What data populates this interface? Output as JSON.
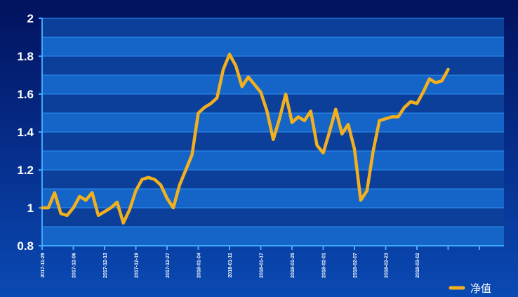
{
  "colors": {
    "line": "#f2b01e",
    "grid": "#2f8ff0",
    "axis": "#3fa9ff",
    "band_dark": "#0b3f9a",
    "band_light": "#1565c8"
  },
  "chart_data": {
    "type": "line",
    "title": "",
    "xlabel": "",
    "ylabel": "",
    "ylim": [
      0.8,
      2
    ],
    "yticks": [
      "0.8",
      "1",
      "1.2",
      "1.4",
      "1.6",
      "1.8",
      "2"
    ],
    "xtick_labels": [
      "2017-11-29",
      "2017-12-06",
      "2017-12-13",
      "2017-12-19",
      "2017-12-27",
      "2018-01-04",
      "2018-01-11",
      "2018-01-17",
      "2018-01-25",
      "2018-02-01",
      "2018-02-07",
      "2018-02-23",
      "2018-03-02"
    ],
    "grid": true,
    "legend": "bottom-right",
    "series": [
      {
        "name": "净值",
        "values": [
          1.0,
          1.0,
          1.08,
          0.97,
          0.96,
          1.0,
          1.06,
          1.04,
          1.08,
          0.96,
          0.98,
          1.0,
          1.03,
          0.92,
          0.99,
          1.09,
          1.15,
          1.16,
          1.15,
          1.12,
          1.05,
          1.0,
          1.12,
          1.2,
          1.28,
          1.5,
          1.53,
          1.55,
          1.58,
          1.73,
          1.81,
          1.75,
          1.64,
          1.69,
          1.65,
          1.61,
          1.51,
          1.36,
          1.47,
          1.6,
          1.45,
          1.48,
          1.46,
          1.51,
          1.33,
          1.29,
          1.4,
          1.52,
          1.39,
          1.44,
          1.31,
          1.04,
          1.09,
          1.3,
          1.46,
          1.47,
          1.48,
          1.48,
          1.53,
          1.56,
          1.55,
          1.61,
          1.68,
          1.66,
          1.67,
          1.73
        ]
      }
    ]
  }
}
